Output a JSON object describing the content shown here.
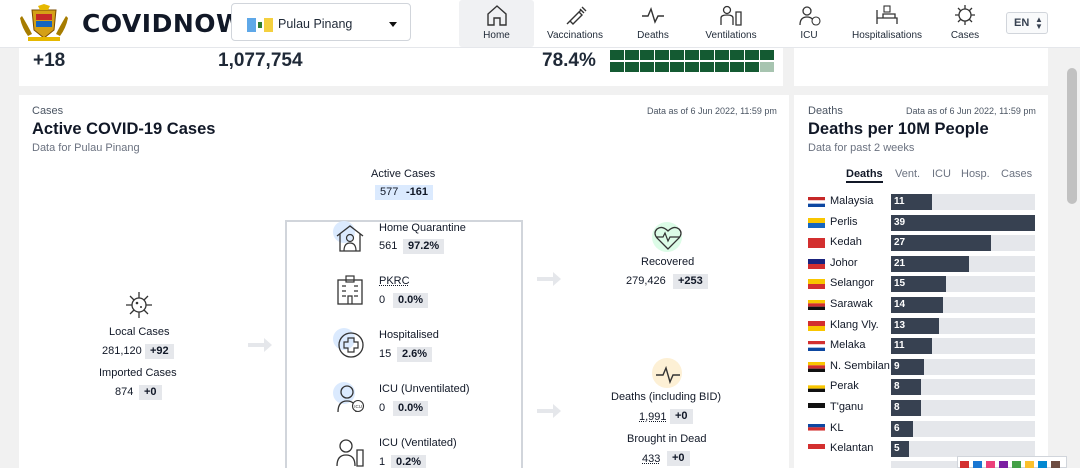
{
  "header": {
    "brand": "COVIDNOW",
    "state": "Pulau Pinang",
    "nav": [
      {
        "label": "Home",
        "icon": "home-icon",
        "active": true
      },
      {
        "label": "Vaccinations",
        "icon": "syringe-icon"
      },
      {
        "label": "Deaths",
        "icon": "pulse-icon"
      },
      {
        "label": "Ventilations",
        "icon": "ventilator-icon"
      },
      {
        "label": "ICU",
        "icon": "icu-icon"
      },
      {
        "label": "Hospitalisations",
        "icon": "hospital-bed-icon"
      },
      {
        "label": "Cases",
        "icon": "virus-icon"
      }
    ],
    "lang": "EN"
  },
  "summary": {
    "change": "+18",
    "total": "1,077,754",
    "percent": "78.4%",
    "progress_fraction": 0.784
  },
  "active_cases": {
    "eyebrow": "Cases",
    "title": "Active COVID-19 Cases",
    "subtitle": "Data for Pulau Pinang",
    "as_of": "Data as of 6 Jun 2022, 11:59 pm",
    "active": {
      "label": "Active Cases",
      "value": "577",
      "delta": "-161"
    },
    "local": {
      "label": "Local Cases",
      "value": "281,120",
      "delta": "+92"
    },
    "imported": {
      "label": "Imported Cases",
      "value": "874",
      "delta": "+0"
    },
    "home_quarantine": {
      "label": "Home Quarantine",
      "value": "561",
      "pct": "97.2%"
    },
    "pkrc": {
      "label": "PKRC",
      "value": "0",
      "pct": "0.0%"
    },
    "hospitalised": {
      "label": "Hospitalised",
      "value": "15",
      "pct": "2.6%"
    },
    "icu_unvent": {
      "label": "ICU (Unventilated)",
      "value": "0",
      "pct": "0.0%"
    },
    "icu_vent": {
      "label": "ICU (Ventilated)",
      "value": "1",
      "pct": "0.2%"
    },
    "recovered": {
      "label": "Recovered",
      "value": "279,426",
      "delta": "+253"
    },
    "deaths_bid": {
      "label": "Deaths (including BID)",
      "value": "1,991",
      "delta": "+0"
    },
    "bid": {
      "label": "Brought in Dead",
      "value": "433",
      "delta": "+0"
    }
  },
  "deaths_panel": {
    "eyebrow": "Deaths",
    "as_of": "Data as of 6 Jun 2022, 11:59 pm",
    "title": "Deaths per 10M People",
    "subtitle": "Data for past 2 weeks",
    "tabs": [
      "Deaths",
      "Vent.",
      "ICU",
      "Hosp.",
      "Cases"
    ],
    "rows": [
      {
        "state": "Malaysia",
        "value": "11",
        "num": 11
      },
      {
        "state": "Perlis",
        "value": "39",
        "num": 39
      },
      {
        "state": "Kedah",
        "value": "27",
        "num": 27
      },
      {
        "state": "Johor",
        "value": "21",
        "num": 21
      },
      {
        "state": "Selangor",
        "value": "15",
        "num": 15
      },
      {
        "state": "Sarawak",
        "value": "14",
        "num": 14
      },
      {
        "state": "Klang Vly.",
        "value": "13",
        "num": 13
      },
      {
        "state": "Melaka",
        "value": "11",
        "num": 11
      },
      {
        "state": "N. Sembilan",
        "value": "9",
        "num": 9
      },
      {
        "state": "Perak",
        "value": "8",
        "num": 8
      },
      {
        "state": "T'ganu",
        "value": "8",
        "num": 8
      },
      {
        "state": "KL",
        "value": "6",
        "num": 6
      },
      {
        "state": "Kelantan",
        "value": "5",
        "num": 5
      }
    ]
  }
}
